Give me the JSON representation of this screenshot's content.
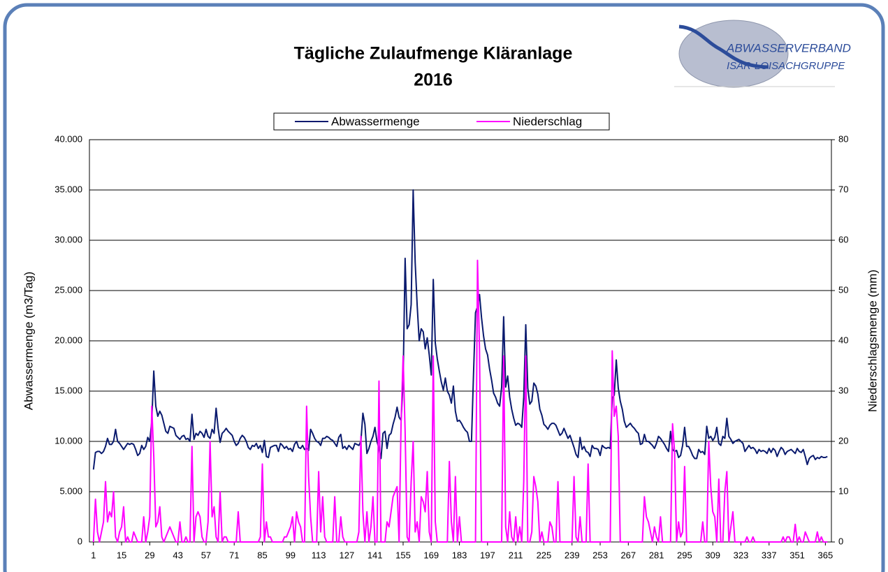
{
  "chart_data": {
    "type": "line",
    "title": "Tägliche Zulaufmenge Kläranlage",
    "subtitle": "2016",
    "logo": [
      "ABWASSERVERBAND",
      "ISAR-LOISACHGRUPPE"
    ],
    "ylabel": "Abwassermenge (m3/Tag)",
    "y2label": "Niederschlagsmenge (mm)",
    "legend": "top",
    "grid": true,
    "xlim": [
      -1,
      368
    ],
    "xticks": [
      1,
      15,
      29,
      43,
      57,
      71,
      85,
      99,
      113,
      127,
      141,
      155,
      169,
      183,
      197,
      211,
      225,
      239,
      253,
      267,
      281,
      295,
      309,
      323,
      337,
      351,
      365
    ],
    "ylim": [
      0,
      40000
    ],
    "yticks": [
      {
        "value": 0,
        "label": "0"
      },
      {
        "value": 5000,
        "label": "5.000"
      },
      {
        "value": 10000,
        "label": "10.000"
      },
      {
        "value": 15000,
        "label": "15.000"
      },
      {
        "value": 20000,
        "label": "20.000"
      },
      {
        "value": 25000,
        "label": "25.000"
      },
      {
        "value": 30000,
        "label": "30.000"
      },
      {
        "value": 35000,
        "label": "35.000"
      },
      {
        "value": 40000,
        "label": "40.000"
      }
    ],
    "y2lim": [
      0,
      80
    ],
    "y2ticks": [
      0,
      10,
      20,
      30,
      40,
      50,
      60,
      70,
      80
    ],
    "x": [
      1,
      2,
      3,
      4,
      5,
      6,
      7,
      8,
      9,
      10,
      11,
      12,
      13,
      14,
      15,
      16,
      17,
      18,
      19,
      20,
      21,
      22,
      23,
      24,
      25,
      26,
      27,
      28,
      29,
      30,
      31,
      32,
      33,
      34,
      35,
      36,
      37,
      38,
      39,
      40,
      41,
      42,
      43,
      44,
      45,
      46,
      47,
      48,
      49,
      50,
      51,
      52,
      53,
      54,
      55,
      56,
      57,
      58,
      59,
      60,
      61,
      62,
      63,
      64,
      65,
      66,
      67,
      68,
      69,
      70,
      71,
      72,
      73,
      74,
      75,
      76,
      77,
      78,
      79,
      80,
      81,
      82,
      83,
      84,
      85,
      86,
      87,
      88,
      89,
      90,
      91,
      92,
      93,
      94,
      95,
      96,
      97,
      98,
      99,
      100,
      101,
      102,
      103,
      104,
      105,
      106,
      107,
      108,
      109,
      110,
      111,
      112,
      113,
      114,
      115,
      116,
      117,
      118,
      119,
      120,
      121,
      122,
      123,
      124,
      125,
      126,
      127,
      128,
      129,
      130,
      131,
      132,
      133,
      134,
      135,
      136,
      137,
      138,
      139,
      140,
      141,
      142,
      143,
      144,
      145,
      146,
      147,
      148,
      149,
      150,
      151,
      152,
      153,
      154,
      155,
      156,
      157,
      158,
      159,
      160,
      161,
      162,
      163,
      164,
      165,
      166,
      167,
      168,
      169,
      170,
      171,
      172,
      173,
      174,
      175,
      176,
      177,
      178,
      179,
      180,
      181,
      182,
      183,
      184,
      185,
      186,
      187,
      188,
      189,
      190,
      191,
      192,
      193,
      194,
      195,
      196,
      197,
      198,
      199,
      200,
      201,
      202,
      203,
      204,
      205,
      206,
      207,
      208,
      209,
      210,
      211,
      212,
      213,
      214,
      215,
      216,
      217,
      218,
      219,
      220,
      221,
      222,
      223,
      224,
      225,
      226,
      227,
      228,
      229,
      230,
      231,
      232,
      233,
      234,
      235,
      236,
      237,
      238,
      239,
      240,
      241,
      242,
      243,
      244,
      245,
      246,
      247,
      248,
      249,
      250,
      251,
      252,
      253,
      254,
      255,
      256,
      257,
      258,
      259,
      260,
      261,
      262,
      263,
      264,
      265,
      266,
      267,
      268,
      269,
      270,
      271,
      272,
      273,
      274,
      275,
      276,
      277,
      278,
      279,
      280,
      281,
      282,
      283,
      284,
      285,
      286,
      287,
      288,
      289,
      290,
      291,
      292,
      293,
      294,
      295,
      296,
      297,
      298,
      299,
      300,
      301,
      302,
      303,
      304,
      305,
      306,
      307,
      308,
      309,
      310,
      311,
      312,
      313,
      314,
      315,
      316,
      317,
      318,
      319,
      320,
      321,
      322,
      323,
      324,
      325,
      326,
      327,
      328,
      329,
      330,
      331,
      332,
      333,
      334,
      335,
      336,
      337,
      338,
      339,
      340,
      341,
      342,
      343,
      344,
      345,
      346,
      347,
      348,
      349,
      350,
      351,
      352,
      353,
      354,
      355,
      356,
      357,
      358,
      359,
      360,
      361,
      362,
      363,
      364,
      365,
      366
    ],
    "series": [
      {
        "name": "Abwassermenge",
        "color": "#0a1a6e",
        "values": [
          7200,
          8900,
          9000,
          9000,
          8800,
          9000,
          9500,
          10300,
          9700,
          9700,
          10000,
          11200,
          10000,
          9800,
          9500,
          9200,
          9500,
          9800,
          9700,
          9800,
          9700,
          9200,
          8600,
          8800,
          9600,
          9200,
          9500,
          10400,
          10000,
          12000,
          17000,
          13500,
          12500,
          13000,
          12600,
          11800,
          11000,
          10800,
          11500,
          11400,
          11300,
          10600,
          10400,
          10200,
          10500,
          10600,
          10200,
          10300,
          10000,
          12700,
          10200,
          10800,
          10600,
          11000,
          10800,
          10400,
          11200,
          10500,
          10300,
          11200,
          10800,
          13300,
          11300,
          9900,
          10800,
          11000,
          11300,
          11000,
          10800,
          10600,
          10000,
          9600,
          9800,
          10300,
          10600,
          10400,
          10000,
          9400,
          9200,
          9600,
          9500,
          9800,
          9300,
          9600,
          8900,
          10100,
          8500,
          8400,
          9400,
          9500,
          9600,
          9600,
          9000,
          9800,
          9600,
          9300,
          9500,
          9200,
          9300,
          9000,
          9700,
          10000,
          9400,
          9300,
          9600,
          9200,
          9300,
          9100,
          11200,
          10800,
          10300,
          10000,
          9900,
          9600,
          10300,
          10300,
          10500,
          10400,
          10200,
          10100,
          9800,
          9500,
          10400,
          10700,
          9300,
          9500,
          9200,
          9600,
          9400,
          9200,
          9800,
          9700,
          9600,
          10000,
          12800,
          11700,
          8800,
          9300,
          10000,
          10500,
          11400,
          10000,
          9300,
          8300,
          10800,
          11000,
          9300,
          10600,
          10800,
          11700,
          12400,
          13400,
          12400,
          12100,
          16000,
          28200,
          21200,
          21600,
          23600,
          35000,
          27800,
          23500,
          20000,
          21200,
          20900,
          19200,
          20300,
          18600,
          16600,
          26100,
          19800,
          18200,
          17000,
          15900,
          15100,
          16300,
          15000,
          14600,
          13800,
          15500,
          13000,
          12000,
          12100,
          11800,
          11400,
          11100,
          10900,
          10000,
          10000,
          16600,
          22800,
          23400,
          24600,
          22300,
          20500,
          19200,
          18600,
          17200,
          16100,
          14800,
          14400,
          13800,
          13500,
          15400,
          22400,
          15400,
          16500,
          14400,
          13200,
          12300,
          11600,
          11800,
          11700,
          11400,
          14400,
          21600,
          15300,
          13700,
          14000,
          15800,
          15500,
          14700,
          13200,
          12600,
          11700,
          11500,
          11200,
          11600,
          11800,
          11800,
          11600,
          11100,
          10600,
          10800,
          11300,
          10800,
          10300,
          10600,
          10000,
          9400,
          8700,
          8400,
          10400,
          9200,
          9500,
          9000,
          8900,
          8500,
          9600,
          9300,
          9300,
          9200,
          8600,
          9600,
          9400,
          9300,
          9400,
          9300,
          14300,
          14600,
          18100,
          15300,
          14000,
          13200,
          12000,
          11400,
          11600,
          11800,
          11500,
          11300,
          11000,
          10800,
          9700,
          9800,
          10700,
          10000,
          10000,
          9800,
          9600,
          9300,
          9800,
          10500,
          10300,
          10000,
          9700,
          9300,
          9000,
          11000,
          9200,
          9000,
          9100,
          8400,
          8600,
          9600,
          11400,
          9500,
          9500,
          9100,
          8600,
          8300,
          8300,
          9200,
          8900,
          9000,
          8700,
          11500,
          10300,
          10500,
          10100,
          10400,
          11400,
          9800,
          9600,
          10500,
          10300,
          12300,
          10500,
          10200,
          9800,
          10000,
          10100,
          10200,
          10000,
          9800,
          9000,
          9300,
          9600,
          9300,
          9400,
          9200,
          8800,
          9200,
          9000,
          9100,
          9000,
          8800,
          9300,
          8900,
          9300,
          9100,
          8500,
          9000,
          9400,
          9200,
          8700,
          9000,
          9100,
          9200,
          9000,
          8800,
          9300,
          9000,
          8900,
          9200,
          8500,
          7700,
          8300,
          8500,
          8600,
          8200,
          8400,
          8300,
          8500,
          8400,
          8400,
          8500
        ]
      },
      {
        "name": "Niederschlag",
        "color": "#ff00ff",
        "axis": "y2",
        "values": [
          0,
          8.5,
          2,
          0,
          2,
          4,
          12,
          4,
          6,
          5,
          10,
          1,
          0,
          2,
          3,
          7,
          0,
          1,
          0,
          0,
          2,
          1,
          0,
          0,
          0,
          5,
          0,
          2,
          5,
          27,
          17,
          3,
          4,
          7,
          1,
          0,
          1,
          2,
          3,
          2,
          1,
          0,
          0,
          4,
          0,
          0,
          1,
          0,
          0,
          19,
          0,
          5,
          6,
          5,
          1,
          0,
          0,
          4,
          20,
          5,
          7,
          1,
          0,
          10,
          0,
          1,
          1,
          0,
          0,
          0,
          0,
          0,
          6,
          0,
          0,
          0,
          0,
          0,
          0,
          0,
          0,
          0,
          0,
          1,
          15.5,
          0,
          4,
          1,
          1,
          0,
          0,
          0,
          0,
          0,
          0,
          1,
          1,
          2,
          3,
          5,
          0,
          6,
          4,
          3,
          0,
          0,
          27,
          13,
          5,
          0,
          0,
          0,
          14,
          2,
          9,
          1,
          0,
          0,
          0,
          0,
          9,
          0,
          0,
          5,
          1,
          0,
          0,
          0,
          0,
          0,
          0,
          0,
          2,
          21,
          6,
          0,
          6,
          0,
          3,
          9,
          0,
          0,
          32,
          0,
          0,
          0,
          4,
          3,
          6,
          9,
          10,
          11,
          0,
          24,
          37,
          22,
          1,
          0,
          12,
          20,
          2,
          4,
          0,
          9,
          8,
          6,
          14,
          2,
          0,
          37,
          4,
          0,
          0,
          0,
          0,
          0,
          0,
          16,
          4,
          0,
          13,
          0,
          5,
          0,
          0,
          0,
          0,
          0,
          0,
          0,
          0,
          56,
          38,
          0,
          0,
          0,
          0,
          0,
          0,
          0,
          0,
          0,
          0,
          0,
          37,
          3,
          0,
          6,
          1,
          0,
          5,
          0,
          3,
          0,
          12,
          37,
          0,
          0,
          2,
          13,
          11,
          8,
          0,
          2,
          0,
          0,
          0,
          4,
          3,
          0,
          0,
          12,
          0,
          0,
          0,
          0,
          0,
          0,
          0,
          13,
          1,
          0,
          5,
          0,
          0,
          0,
          15.5,
          0,
          0,
          0,
          0,
          0,
          0,
          0,
          0,
          0,
          0,
          0,
          38,
          25,
          27,
          21,
          0,
          0,
          0,
          0,
          0,
          0,
          0,
          0,
          0,
          0,
          0,
          0,
          9,
          5,
          4,
          2,
          0,
          3,
          1,
          0,
          5,
          0,
          0,
          0,
          0,
          0,
          23.5,
          18,
          0,
          4,
          1,
          2,
          15,
          0,
          0,
          0,
          0,
          0,
          0,
          0,
          0,
          4,
          0,
          0,
          20,
          11,
          6,
          5,
          0,
          12.5,
          0,
          0,
          10,
          14,
          0,
          3,
          6,
          0,
          0,
          0,
          0,
          0,
          0,
          1,
          0,
          0,
          1,
          0,
          0,
          0,
          0,
          0,
          0,
          0,
          0,
          0,
          0,
          0,
          0,
          0,
          0,
          1,
          0,
          1,
          1,
          0,
          0,
          3.5,
          0,
          1,
          0,
          0,
          2,
          1,
          0,
          0,
          0,
          0,
          2,
          0,
          1,
          0,
          0,
          0
        ]
      }
    ]
  }
}
